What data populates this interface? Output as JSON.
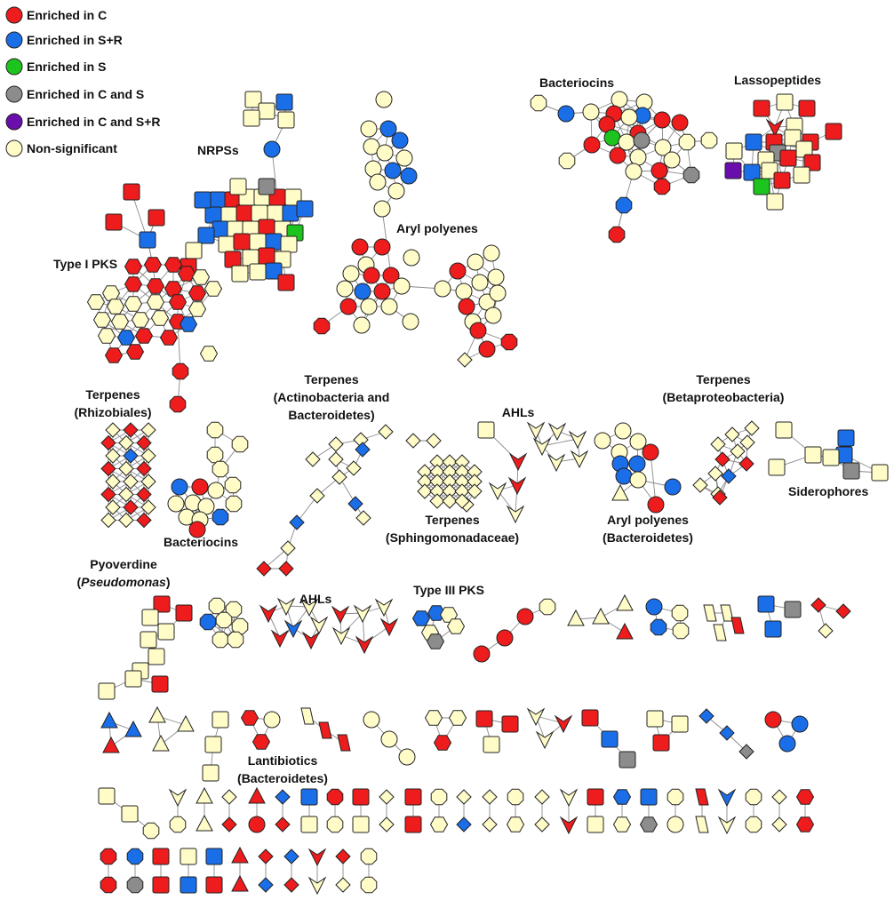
{
  "colors": {
    "C": "#ee1c1c",
    "SR": "#1a6ee8",
    "S": "#1ec41e",
    "CS": "#8c8c8c",
    "CSR": "#6a0dad",
    "NS": "#fffcc8"
  },
  "legend": [
    {
      "key": "C",
      "label": "Enriched in C"
    },
    {
      "key": "SR",
      "label": "Enriched in S+R"
    },
    {
      "key": "S",
      "label": "Enriched in S"
    },
    {
      "key": "CS",
      "label": "Enriched in C and S"
    },
    {
      "key": "CSR",
      "label": "Enriched in C and S+R"
    },
    {
      "key": "NS",
      "label": "Non-significant"
    }
  ],
  "labels": {
    "nrps": "NRPSs",
    "type1pks": "Type I PKS",
    "aryl1": "Aryl polyenes",
    "bacteriocins1": "Bacteriocins",
    "lassopeptides": "Lassopeptides",
    "terp_rhiz_1": "Terpenes",
    "terp_rhiz_2": "(Rhizobiales)",
    "terp_act_1": "Terpenes",
    "terp_act_2": "(Actinobacteria and",
    "terp_act_3": "Bacteroidetes)",
    "ahls1": "AHLs",
    "terp_beta_1": "Terpenes",
    "terp_beta_2": "(Betaproteobacteria)",
    "siderophores": "Siderophores",
    "bacteriocins2": "Bacteriocins",
    "terp_sph_1": "Terpenes",
    "terp_sph_2": "(Sphingomonadaceae)",
    "aryl2_1": "Aryl polyenes",
    "aryl2_2": "(Bacteroidetes)",
    "pyo_1": "Pyoverdine",
    "pyo_2_open": "(",
    "pyo_2_it": "Pseudomonas",
    "pyo_2_close": ")",
    "ahls2": "AHLs",
    "type3pks": "Type III PKS",
    "lanti_1": "Lantibiotics",
    "lanti_2": "(Bacteroidetes)"
  }
}
